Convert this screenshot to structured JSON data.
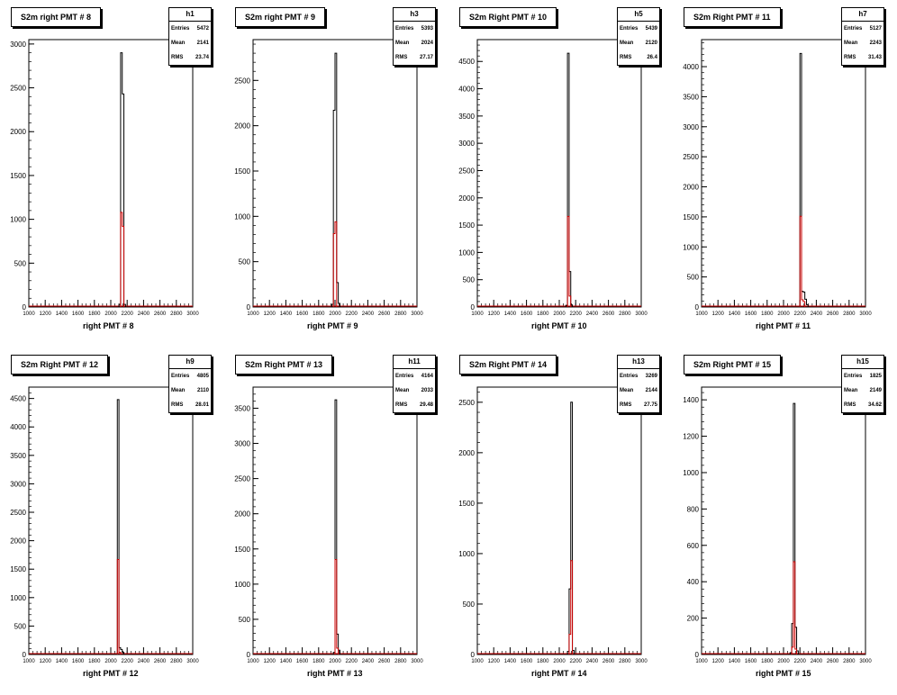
{
  "chart_data": [
    {
      "type": "bar",
      "title": "S2m right PMT # 8",
      "hist_name": "h1",
      "stats": {
        "entries_label": "Entries",
        "entries": "5472",
        "mean_label": "Mean",
        "mean": "2141",
        "rms_label": "RMS",
        "rms": "23.74"
      },
      "xlabel": "right PMT # 8",
      "xlim": [
        1000,
        3000
      ],
      "ylim": [
        0,
        3050
      ],
      "xticks": [
        "1000",
        "1200",
        "1400",
        "1600",
        "1800",
        "2000",
        "2200",
        "2400",
        "2600",
        "2800",
        "3000"
      ],
      "yticks": [
        "0",
        "500",
        "1000",
        "1500",
        "2000",
        "2500",
        "3000"
      ],
      "series": [
        {
          "color": "#000000",
          "bins": [
            [
              2100,
              2120,
              30
            ],
            [
              2120,
              2140,
              2900
            ],
            [
              2140,
              2160,
              2430
            ],
            [
              2160,
              2180,
              30
            ]
          ]
        },
        {
          "color": "#cc0000",
          "bins": [
            [
              2120,
              2140,
              1080
            ],
            [
              2140,
              2160,
              920
            ]
          ]
        }
      ]
    },
    {
      "type": "bar",
      "title": "S2m right PMT # 9",
      "hist_name": "h3",
      "stats": {
        "entries_label": "Entries",
        "entries": "5393",
        "mean_label": "Mean",
        "mean": "2024",
        "rms_label": "RMS",
        "rms": "27.17"
      },
      "xlabel": "right PMT # 9",
      "xlim": [
        1000,
        3000
      ],
      "ylim": [
        0,
        2950
      ],
      "xticks": [
        "1000",
        "1200",
        "1400",
        "1600",
        "1800",
        "2000",
        "2200",
        "2400",
        "2600",
        "2800",
        "3000"
      ],
      "yticks": [
        "0",
        "500",
        "1000",
        "1500",
        "2000",
        "2500"
      ],
      "series": [
        {
          "color": "#000000",
          "bins": [
            [
              1960,
              1980,
              30
            ],
            [
              1980,
              2000,
              2170
            ],
            [
              2000,
              2020,
              2800
            ],
            [
              2020,
              2040,
              270
            ],
            [
              2040,
              2060,
              40
            ]
          ]
        },
        {
          "color": "#cc0000",
          "bins": [
            [
              1980,
              2000,
              810
            ],
            [
              2000,
              2020,
              940
            ]
          ]
        }
      ]
    },
    {
      "type": "bar",
      "title": "S2m Right PMT # 10",
      "hist_name": "h5",
      "stats": {
        "entries_label": "Entries",
        "entries": "5439",
        "mean_label": "Mean",
        "mean": "2120",
        "rms_label": "RMS",
        "rms": "26.4"
      },
      "xlabel": "right PMT # 10",
      "xlim": [
        1000,
        3000
      ],
      "ylim": [
        0,
        4900
      ],
      "xticks": [
        "1000",
        "1200",
        "1400",
        "1600",
        "1800",
        "2000",
        "2200",
        "2400",
        "2600",
        "2800",
        "3000"
      ],
      "yticks": [
        "0",
        "500",
        "1000",
        "1500",
        "2000",
        "2500",
        "3000",
        "3500",
        "4000",
        "4500"
      ],
      "series": [
        {
          "color": "#000000",
          "bins": [
            [
              2080,
              2100,
              30
            ],
            [
              2100,
              2120,
              4650
            ],
            [
              2120,
              2140,
              650
            ],
            [
              2140,
              2160,
              40
            ]
          ]
        },
        {
          "color": "#cc0000",
          "bins": [
            [
              2100,
              2120,
              1660
            ],
            [
              2120,
              2140,
              200
            ]
          ]
        }
      ]
    },
    {
      "type": "bar",
      "title": "S2m Right PMT # 11",
      "hist_name": "h7",
      "stats": {
        "entries_label": "Entries",
        "entries": "5127",
        "mean_label": "Mean",
        "mean": "2243",
        "rms_label": "RMS",
        "rms": "31.43"
      },
      "xlabel": "right PMT # 11",
      "xlim": [
        1000,
        3000
      ],
      "ylim": [
        0,
        4450
      ],
      "xticks": [
        "1000",
        "1200",
        "1400",
        "1600",
        "1800",
        "2000",
        "2200",
        "2400",
        "2600",
        "2800",
        "3000"
      ],
      "yticks": [
        "0",
        "500",
        "1000",
        "1500",
        "2000",
        "2500",
        "3000",
        "3500",
        "4000"
      ],
      "series": [
        {
          "color": "#000000",
          "bins": [
            [
              2200,
              2220,
              4220
            ],
            [
              2220,
              2240,
              260
            ],
            [
              2240,
              2260,
              250
            ],
            [
              2260,
              2280,
              130
            ],
            [
              2280,
              2300,
              40
            ]
          ]
        },
        {
          "color": "#cc0000",
          "bins": [
            [
              2200,
              2220,
              1510
            ],
            [
              2220,
              2240,
              120
            ],
            [
              2240,
              2260,
              90
            ]
          ]
        }
      ]
    },
    {
      "type": "bar",
      "title": "S2m Right PMT # 12",
      "hist_name": "h9",
      "stats": {
        "entries_label": "Entries",
        "entries": "4805",
        "mean_label": "Mean",
        "mean": "2110",
        "rms_label": "RMS",
        "rms": "28.01"
      },
      "xlabel": "right PMT # 12",
      "xlim": [
        1000,
        3000
      ],
      "ylim": [
        0,
        4700
      ],
      "xticks": [
        "1000",
        "1200",
        "1400",
        "1600",
        "1800",
        "2000",
        "2200",
        "2400",
        "2600",
        "2800",
        "3000"
      ],
      "yticks": [
        "0",
        "500",
        "1000",
        "1500",
        "2000",
        "2500",
        "3000",
        "3500",
        "4000",
        "4500"
      ],
      "series": [
        {
          "color": "#000000",
          "bins": [
            [
              2080,
              2100,
              4480
            ],
            [
              2100,
              2120,
              120
            ],
            [
              2120,
              2140,
              90
            ],
            [
              2140,
              2160,
              40
            ]
          ]
        },
        {
          "color": "#cc0000",
          "bins": [
            [
              2080,
              2100,
              1670
            ],
            [
              2100,
              2120,
              40
            ]
          ]
        }
      ]
    },
    {
      "type": "bar",
      "title": "S2m Right PMT # 13",
      "hist_name": "h11",
      "stats": {
        "entries_label": "Entries",
        "entries": "4164",
        "mean_label": "Mean",
        "mean": "2033",
        "rms_label": "RMS",
        "rms": "29.48"
      },
      "xlabel": "right PMT # 13",
      "xlim": [
        1000,
        3000
      ],
      "ylim": [
        0,
        3800
      ],
      "xticks": [
        "1000",
        "1200",
        "1400",
        "1600",
        "1800",
        "2000",
        "2200",
        "2400",
        "2600",
        "2800",
        "3000"
      ],
      "yticks": [
        "0",
        "500",
        "1000",
        "1500",
        "2000",
        "2500",
        "3000",
        "3500"
      ],
      "series": [
        {
          "color": "#000000",
          "bins": [
            [
              1980,
              2000,
              30
            ],
            [
              2000,
              2020,
              3620
            ],
            [
              2020,
              2040,
              290
            ],
            [
              2040,
              2060,
              60
            ]
          ]
        },
        {
          "color": "#cc0000",
          "bins": [
            [
              2000,
              2020,
              1350
            ],
            [
              2020,
              2040,
              90
            ]
          ]
        }
      ]
    },
    {
      "type": "bar",
      "title": "S2m Right PMT # 14",
      "hist_name": "h13",
      "stats": {
        "entries_label": "Entries",
        "entries": "3269",
        "mean_label": "Mean",
        "mean": "2144",
        "rms_label": "RMS",
        "rms": "27.75"
      },
      "xlabel": "right PMT # 14",
      "xlim": [
        1000,
        3000
      ],
      "ylim": [
        0,
        2650
      ],
      "xticks": [
        "1000",
        "1200",
        "1400",
        "1600",
        "1800",
        "2000",
        "2200",
        "2400",
        "2600",
        "2800",
        "3000"
      ],
      "yticks": [
        "0",
        "500",
        "1000",
        "1500",
        "2000",
        "2500"
      ],
      "series": [
        {
          "color": "#000000",
          "bins": [
            [
              2100,
              2120,
              30
            ],
            [
              2120,
              2140,
              650
            ],
            [
              2140,
              2160,
              2500
            ],
            [
              2160,
              2180,
              40
            ]
          ]
        },
        {
          "color": "#cc0000",
          "bins": [
            [
              2120,
              2140,
              200
            ],
            [
              2140,
              2160,
              930
            ]
          ]
        }
      ]
    },
    {
      "type": "bar",
      "title": "S2m Right PMT # 15",
      "hist_name": "h15",
      "stats": {
        "entries_label": "Entries",
        "entries": "1825",
        "mean_label": "Mean",
        "mean": "2149",
        "rms_label": "RMS",
        "rms": "34.62"
      },
      "xlabel": "right PMT # 15",
      "xlim": [
        1000,
        3000
      ],
      "ylim": [
        0,
        1470
      ],
      "xticks": [
        "1000",
        "1200",
        "1400",
        "1600",
        "1800",
        "2000",
        "2200",
        "2400",
        "2600",
        "2800",
        "3000"
      ],
      "yticks": [
        "0",
        "200",
        "400",
        "600",
        "800",
        "1000",
        "1200",
        "1400"
      ],
      "series": [
        {
          "color": "#000000",
          "bins": [
            [
              2080,
              2100,
              10
            ],
            [
              2100,
              2120,
              170
            ],
            [
              2120,
              2140,
              1380
            ],
            [
              2140,
              2160,
              150
            ],
            [
              2160,
              2180,
              20
            ]
          ]
        },
        {
          "color": "#cc0000",
          "bins": [
            [
              2100,
              2120,
              40
            ],
            [
              2120,
              2140,
              510
            ],
            [
              2140,
              2160,
              30
            ]
          ]
        }
      ]
    }
  ]
}
